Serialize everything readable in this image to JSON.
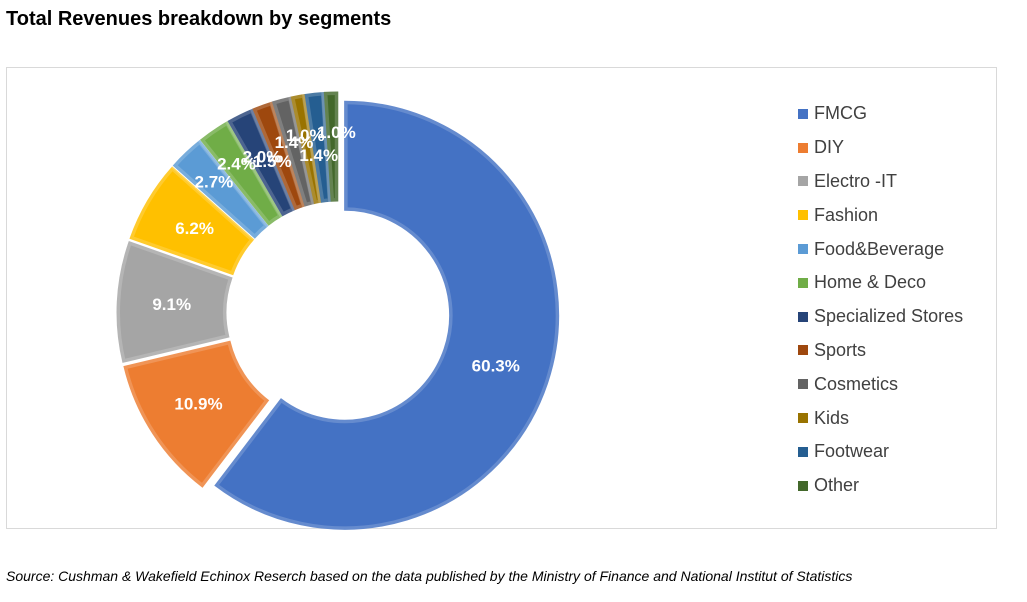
{
  "title": "Total Revenues breakdown by segments",
  "source": "Source: Cushman & Wakefield Echinox Reserch based on the data published by the Ministry of Finance and National Institut of Statistics",
  "chart_data": {
    "type": "pie",
    "variant": "donut",
    "title": "Total Revenues breakdown by segments",
    "unit": "%",
    "legend_position": "right",
    "start_angle_deg": 0,
    "direction": "clockwise",
    "exploded": true,
    "slices": [
      {
        "label": "FMCG",
        "value": 60.3,
        "display": "60.3%",
        "color": "#4472C4"
      },
      {
        "label": "DIY",
        "value": 10.9,
        "display": "10.9%",
        "color": "#ED7D31"
      },
      {
        "label": "Electro -IT",
        "value": 9.1,
        "display": "9.1%",
        "color": "#A5A5A5"
      },
      {
        "label": "Fashion",
        "value": 6.2,
        "display": "6.2%",
        "color": "#FFC000"
      },
      {
        "label": "Food&Beverage",
        "value": 2.7,
        "display": "2.7%",
        "color": "#5B9BD5"
      },
      {
        "label": "Home & Deco",
        "value": 2.4,
        "display": "2.4%",
        "color": "#70AD47"
      },
      {
        "label": "Specialized Stores",
        "value": 2.0,
        "display": "2.0%",
        "color": "#264478"
      },
      {
        "label": "Sports",
        "value": 1.5,
        "display": "1.5%",
        "color": "#9E480E"
      },
      {
        "label": "Cosmetics",
        "value": 1.4,
        "display": "1.4%",
        "color": "#636363"
      },
      {
        "label": "Kids",
        "value": 1.0,
        "display": "1.0%",
        "color": "#997300"
      },
      {
        "label": "Footwear",
        "value": 1.4,
        "display": "1.4%",
        "color": "#255E91"
      },
      {
        "label": "Other",
        "value": 1.0,
        "display": "1.0%",
        "color": "#43682B"
      }
    ]
  }
}
